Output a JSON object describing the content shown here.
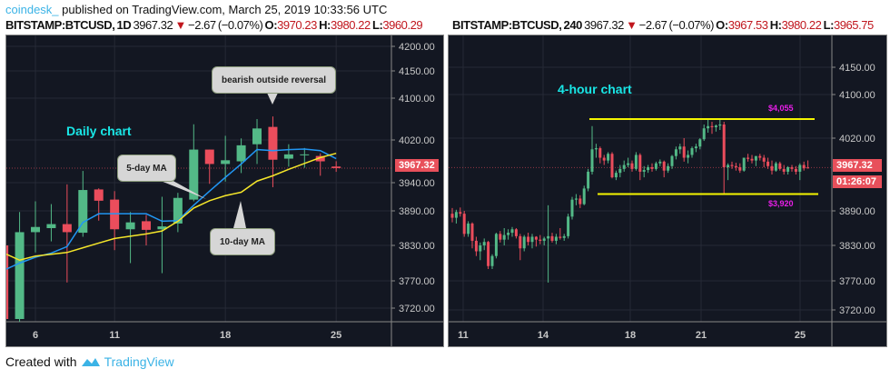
{
  "header": {
    "brand": "coindesk_",
    "published": "published on TradingView.com, March 25, 2019 10:33:56 UTC"
  },
  "left": {
    "symbol": "BITSTAMP:BTCUSD, 1D",
    "last": "3967.32",
    "change": "−2.67 (−0.07%)",
    "o": "3970.23",
    "h": "3980.22",
    "l": "3960.29",
    "title": "Daily chart",
    "callouts": {
      "reversal": "bearish outside reversal",
      "ma5": "5-day MA",
      "ma10": "10-day MA"
    },
    "price_tag": "3967.32",
    "y_ticks": [
      "4200.00",
      "4150.00",
      "4100.00",
      "4020.00",
      "3940.00",
      "3890.00",
      "3830.00",
      "3770.00",
      "3720.00"
    ],
    "x_ticks": [
      "6",
      "11",
      "18",
      "25"
    ]
  },
  "right": {
    "symbol": "BITSTAMP:BTCUSD, 240",
    "last": "3967.32",
    "change": "−2.67 (−0.07%)",
    "o": "3967.53",
    "h": "3980.22",
    "l": "3965.75",
    "title": "4-hour chart",
    "resistance_label": "$4,055",
    "support_label": "$3,920",
    "price_tag": "3967.32",
    "countdown": "01:26:07",
    "y_ticks": [
      "4150.00",
      "4100.00",
      "4020.00",
      "3890.00",
      "3830.00",
      "3770.00",
      "3720.00"
    ],
    "x_ticks": [
      "11",
      "14",
      "18",
      "21",
      "25"
    ]
  },
  "footer": {
    "created": "Created with",
    "tv": "TradingView"
  },
  "colors": {
    "up": "#53b987",
    "down": "#eb4d5c",
    "ma5": "#2196f3",
    "ma10": "#f5e62a",
    "level": "#f5f500",
    "text_accent": "#19e6e6",
    "level_label": "#e81ee8"
  },
  "chart_data": [
    {
      "type": "candlestick",
      "title": "Daily chart",
      "ylim": [
        3700,
        4210
      ],
      "grid": true,
      "ohlc_start_day": 4,
      "ohlc": [
        [
          3830,
          3850,
          3700,
          3700
        ],
        [
          3700,
          3888,
          3695,
          3853
        ],
        [
          3853,
          3907,
          3818,
          3862
        ],
        [
          3860,
          3902,
          3837,
          3867
        ],
        [
          3867,
          3937,
          3767,
          3853
        ],
        [
          3852,
          3962,
          3845,
          3927
        ],
        [
          3928,
          3930,
          3873,
          3908
        ],
        [
          3910,
          3925,
          3822,
          3858
        ],
        [
          3858,
          3888,
          3800,
          3870
        ],
        [
          3872,
          3883,
          3830,
          3857
        ],
        [
          3858,
          3915,
          3783,
          3863
        ],
        [
          3868,
          3922,
          3853,
          3913
        ],
        [
          3910,
          4050,
          3907,
          4002
        ],
        [
          4002,
          4002,
          3938,
          3975
        ],
        [
          3975,
          4028,
          3942,
          3982
        ],
        [
          3980,
          4023,
          3958,
          4010
        ],
        [
          4012,
          4060,
          3975,
          4042
        ],
        [
          4045,
          4065,
          3932,
          3983
        ],
        [
          3985,
          4012,
          3970,
          3993
        ],
        [
          3992,
          4005,
          3968,
          3993
        ],
        [
          3990,
          3995,
          3953,
          3980
        ],
        [
          3970.23,
          3980.22,
          3960.29,
          3967.32
        ]
      ],
      "series": [
        {
          "name": "5-day MA",
          "start_day": 4,
          "values": [
            3788,
            3800,
            3810,
            3817,
            3828,
            3870,
            3885,
            3885,
            3885,
            3885,
            3872,
            3873,
            3900,
            3925,
            3950,
            3975,
            4002,
            4000,
            4002,
            4003,
            4000,
            3985
          ]
        },
        {
          "name": "10-day MA",
          "start_day": 4,
          "values": [
            3817,
            3805,
            3812,
            3815,
            3818,
            3826,
            3834,
            3842,
            3846,
            3850,
            3855,
            3872,
            3895,
            3908,
            3917,
            3923,
            3943,
            3953,
            3965,
            3976,
            3987,
            3995
          ]
        }
      ]
    },
    {
      "type": "candlestick",
      "title": "4-hour chart",
      "ylim": [
        3700,
        4180
      ],
      "grid": true,
      "levels": [
        4055,
        3920
      ],
      "ohlc": [
        [
          3885,
          3895,
          3870,
          3878
        ],
        [
          3878,
          3892,
          3868,
          3888
        ],
        [
          3888,
          3896,
          3880,
          3885
        ],
        [
          3885,
          3890,
          3845,
          3850
        ],
        [
          3850,
          3872,
          3845,
          3868
        ],
        [
          3868,
          3870,
          3825,
          3838
        ],
        [
          3838,
          3845,
          3812,
          3820
        ],
        [
          3820,
          3835,
          3805,
          3830
        ],
        [
          3830,
          3842,
          3822,
          3836
        ],
        [
          3836,
          3838,
          3790,
          3795
        ],
        [
          3795,
          3815,
          3790,
          3812
        ],
        [
          3812,
          3852,
          3808,
          3850
        ],
        [
          3850,
          3855,
          3835,
          3840
        ],
        [
          3840,
          3860,
          3830,
          3848
        ],
        [
          3848,
          3858,
          3840,
          3852
        ],
        [
          3852,
          3862,
          3845,
          3858
        ],
        [
          3858,
          3860,
          3842,
          3846
        ],
        [
          3846,
          3850,
          3805,
          3825
        ],
        [
          3825,
          3848,
          3820,
          3845
        ],
        [
          3845,
          3852,
          3830,
          3836
        ],
        [
          3836,
          3850,
          3825,
          3845
        ],
        [
          3845,
          3846,
          3828,
          3840
        ],
        [
          3840,
          3848,
          3832,
          3838
        ],
        [
          3838,
          3845,
          3830,
          3842
        ],
        [
          3842,
          3900,
          3767,
          3846
        ],
        [
          3846,
          3852,
          3835,
          3838
        ],
        [
          3838,
          3850,
          3832,
          3845
        ],
        [
          3845,
          3860,
          3840,
          3843
        ],
        [
          3843,
          3850,
          3838,
          3846
        ],
        [
          3846,
          3885,
          3842,
          3880
        ],
        [
          3880,
          3915,
          3875,
          3910
        ],
        [
          3910,
          3920,
          3900,
          3912
        ],
        [
          3912,
          3918,
          3895,
          3902
        ],
        [
          3902,
          3935,
          3900,
          3930
        ],
        [
          3930,
          3965,
          3925,
          3960
        ],
        [
          3960,
          4042,
          3955,
          4000
        ],
        [
          4000,
          4010,
          3985,
          4002
        ],
        [
          4002,
          4005,
          3975,
          3985
        ],
        [
          3985,
          3990,
          3972,
          3980
        ],
        [
          3980,
          3995,
          3975,
          3992
        ],
        [
          3992,
          3995,
          3948,
          3950
        ],
        [
          3950,
          3962,
          3945,
          3958
        ],
        [
          3958,
          3972,
          3950,
          3965
        ],
        [
          3965,
          3980,
          3960,
          3972
        ],
        [
          3972,
          3985,
          3968,
          3975
        ],
        [
          3975,
          3980,
          3960,
          3965
        ],
        [
          3965,
          3995,
          3962,
          3990
        ],
        [
          3990,
          3993,
          3945,
          3960
        ],
        [
          3960,
          3970,
          3950,
          3963
        ],
        [
          3963,
          3972,
          3958,
          3968
        ],
        [
          3968,
          3975,
          3960,
          3965
        ],
        [
          3965,
          3978,
          3962,
          3975
        ],
        [
          3975,
          3982,
          3970,
          3978
        ],
        [
          3978,
          3980,
          3950,
          3962
        ],
        [
          3962,
          3975,
          3958,
          3970
        ],
        [
          3970,
          3990,
          3965,
          3988
        ],
        [
          3988,
          4005,
          3982,
          4000
        ],
        [
          4000,
          4010,
          3992,
          4005
        ],
        [
          4005,
          4020,
          3978,
          3985
        ],
        [
          3985,
          3998,
          3975,
          3990
        ],
        [
          3990,
          4005,
          3985,
          4002
        ],
        [
          4002,
          4010,
          3995,
          4005
        ],
        [
          4005,
          4020,
          4000,
          4018
        ],
        [
          4018,
          4045,
          4015,
          4038
        ],
        [
          4038,
          4055,
          4030,
          4042
        ],
        [
          4042,
          4050,
          4028,
          4040
        ],
        [
          4040,
          4045,
          4032,
          4043
        ],
        [
          4043,
          4055,
          4035,
          4045
        ],
        [
          4045,
          4050,
          3920,
          3968
        ],
        [
          3968,
          3975,
          3945,
          3972
        ],
        [
          3972,
          3978,
          3965,
          3970
        ],
        [
          3970,
          3976,
          3962,
          3968
        ],
        [
          3968,
          3975,
          3958,
          3962
        ],
        [
          3962,
          3985,
          3960,
          3985
        ],
        [
          3985,
          3992,
          3978,
          3983
        ],
        [
          3983,
          3990,
          3975,
          3980
        ],
        [
          3980,
          3988,
          3970,
          3988
        ],
        [
          3988,
          3992,
          3980,
          3985
        ],
        [
          3985,
          3990,
          3968,
          3978
        ],
        [
          3978,
          3985,
          3965,
          3970
        ],
        [
          3970,
          3980,
          3955,
          3962
        ],
        [
          3962,
          3978,
          3960,
          3975
        ],
        [
          3975,
          3978,
          3962,
          3965
        ],
        [
          3965,
          3972,
          3955,
          3960
        ],
        [
          3960,
          3970,
          3955,
          3968
        ],
        [
          3968,
          3972,
          3960,
          3965
        ],
        [
          3965,
          3970,
          3955,
          3960
        ],
        [
          3960,
          3975,
          3945,
          3972
        ],
        [
          3972,
          3978,
          3962,
          3966
        ],
        [
          3967.53,
          3980.22,
          3965.75,
          3967.32
        ]
      ]
    }
  ]
}
